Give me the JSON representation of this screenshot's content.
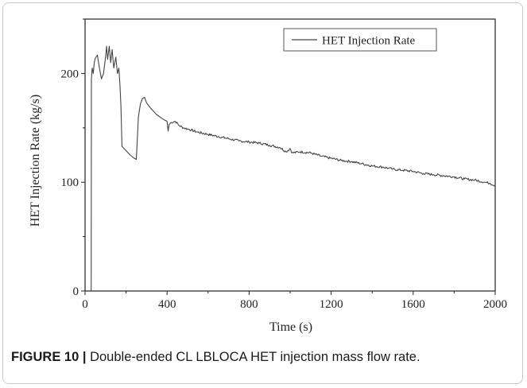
{
  "figure_label": "FIGURE 10 |",
  "caption": "Double-ended CL LBLOCA HET injection mass flow rate.",
  "chart_data": {
    "type": "line",
    "title": "",
    "xlabel": "Time (s)",
    "ylabel": "HET Injection Rate (kg/s)",
    "xlim": [
      0,
      2000
    ],
    "ylim": [
      0,
      250
    ],
    "xticks": [
      0,
      400,
      800,
      1200,
      1600,
      2000
    ],
    "xtick_labels": [
      "0",
      "400",
      "800",
      "1200",
      "1600",
      "2000"
    ],
    "yticks": [
      0,
      100,
      200
    ],
    "ytick_labels": [
      "0",
      "100",
      "200"
    ],
    "grid": false,
    "legend": {
      "placement": "top-right",
      "entries": [
        "HET Injection Rate"
      ]
    },
    "series": [
      {
        "name": "HET Injection Rate",
        "color": "#444444",
        "x": [
          30,
          31,
          35,
          40,
          45,
          50,
          60,
          70,
          80,
          90,
          100,
          105,
          110,
          118,
          125,
          132,
          140,
          150,
          158,
          165,
          170,
          175,
          180,
          200,
          220,
          240,
          250,
          255,
          260,
          270,
          280,
          290,
          300,
          320,
          350,
          380,
          400,
          405,
          410,
          420,
          440,
          460,
          480,
          500,
          550,
          600,
          650,
          700,
          750,
          800,
          850,
          900,
          950,
          980,
          1000,
          1010,
          1050,
          1100,
          1150,
          1200,
          1250,
          1300,
          1350,
          1400,
          1450,
          1480,
          1500,
          1550,
          1600,
          1650,
          1700,
          1750,
          1800,
          1850,
          1900,
          1950,
          1975,
          2000
        ],
        "y": [
          0,
          195,
          205,
          200,
          210,
          214,
          217,
          205,
          195,
          200,
          215,
          225,
          213,
          225,
          210,
          222,
          205,
          215,
          200,
          205,
          190,
          170,
          133,
          129,
          125,
          122,
          121,
          140,
          160,
          172,
          177,
          178,
          173,
          168,
          162,
          158,
          156,
          147,
          153,
          155,
          156,
          152,
          150,
          149,
          146,
          144,
          142,
          140,
          138,
          137,
          136,
          134,
          132,
          128,
          131,
          127,
          128,
          127,
          124,
          122,
          120,
          119,
          117,
          115,
          114,
          113,
          112,
          111,
          110,
          108,
          107,
          106,
          105,
          103,
          102,
          100,
          99,
          97
        ]
      }
    ]
  }
}
